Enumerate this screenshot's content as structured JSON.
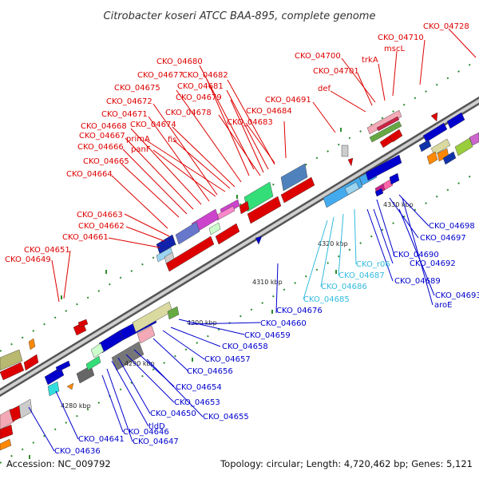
{
  "title": "Citrobacter koseri ATCC BAA-895, complete genome",
  "accession": "Accession: NC_009792",
  "topology": "Topology: circular; Length: 4,720,462 bp; Genes: 5,121",
  "colors": {
    "red": "#dd0000",
    "blue": "#0000cc",
    "cyan": "#33bbdd"
  },
  "kbp_marks": [
    "4280 kbp",
    "4290 kbp",
    "4300 kbp",
    "4310 kbp",
    "4320 kbp",
    "4330 kbp"
  ],
  "labels_red": [
    "CKO_04728",
    "CKO_04710",
    "mscL",
    "trkA",
    "CKO_04700",
    "CKO_04701",
    "def",
    "CKO_04680",
    "CKO_04677",
    "CKO_04682",
    "CKO_04675",
    "CKO_04681",
    "CKO_04679",
    "CKO_04672",
    "CKO_04678",
    "CKO_04671",
    "CKO_04668",
    "CKO_04674",
    "CKO_04667",
    "CKO_04666",
    "CKO_04665",
    "CKO_04664",
    "primA",
    "panF",
    "fis",
    "CKO_04691",
    "CKO_04684",
    "CKO_04683",
    "CKO_04663",
    "CKO_04662",
    "CKO_04661",
    "CKO_04651",
    "CKO_04649"
  ],
  "labels_blue": [
    "CKO_04698",
    "CKO_04697",
    "CKO_04690",
    "CKO_04692",
    "CKO_04689",
    "CKO_04693",
    "aroE",
    "CKO_04676",
    "CKO_04660",
    "CKO_04659",
    "CKO_04658",
    "CKO_04657",
    "CKO_04656",
    "CKO_04654",
    "CKO_04653",
    "CKO_04655",
    "CKO_04650",
    "tldD",
    "CKO_04646",
    "CKO_04647",
    "CKO_04641",
    "CKO_04636"
  ],
  "labels_cyan": [
    "CKO_r06",
    "CKO_04687",
    "CKO_04686",
    "CKO_04685"
  ]
}
